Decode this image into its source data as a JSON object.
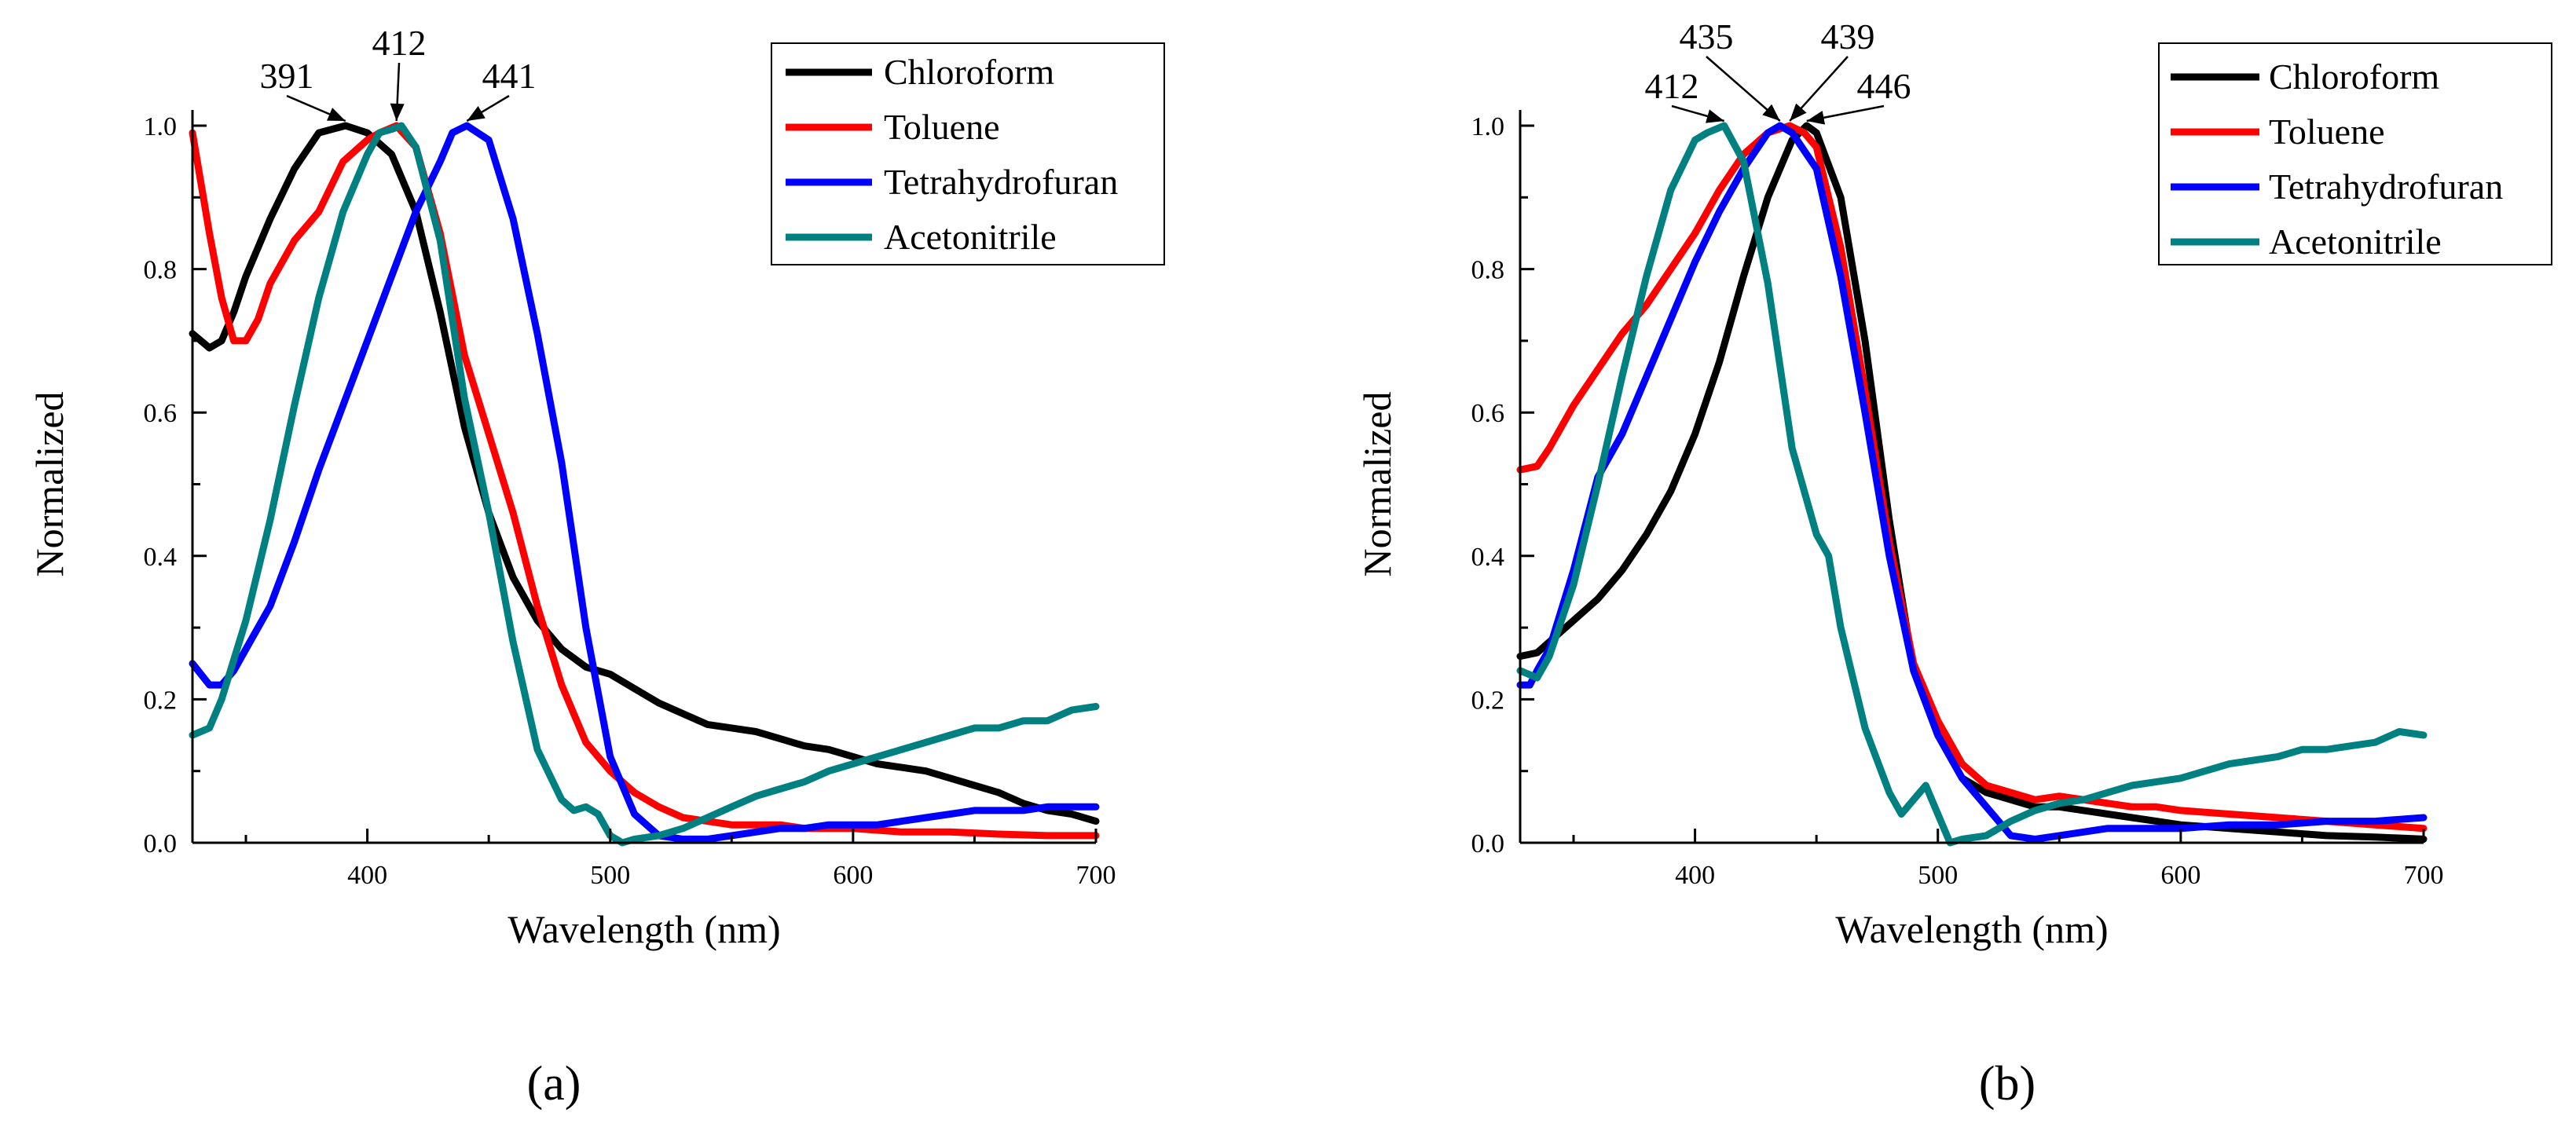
{
  "chart_data": [
    {
      "type": "line",
      "panel_label": "(a)",
      "xlabel": "Wavelength (nm)",
      "ylabel": "Normalized",
      "xlim": [
        328,
        700
      ],
      "ylim": [
        0,
        1.0
      ],
      "xticks": [
        400,
        500,
        600,
        700
      ],
      "yticks": [
        0.0,
        0.2,
        0.4,
        0.6,
        0.8,
        1.0
      ],
      "legend_position": "top-right",
      "series": [
        {
          "name": "Chloroform",
          "color": "#000000",
          "x": [
            328,
            335,
            340,
            345,
            350,
            360,
            370,
            380,
            391,
            400,
            410,
            420,
            430,
            440,
            450,
            460,
            470,
            480,
            490,
            500,
            510,
            520,
            530,
            540,
            550,
            560,
            570,
            580,
            590,
            600,
            610,
            620,
            630,
            640,
            650,
            660,
            670,
            680,
            690,
            700
          ],
          "y": [
            0.71,
            0.69,
            0.7,
            0.74,
            0.79,
            0.87,
            0.94,
            0.99,
            1.0,
            0.99,
            0.96,
            0.88,
            0.74,
            0.58,
            0.46,
            0.37,
            0.31,
            0.27,
            0.245,
            0.235,
            0.215,
            0.195,
            0.18,
            0.165,
            0.16,
            0.155,
            0.145,
            0.135,
            0.13,
            0.12,
            0.11,
            0.105,
            0.1,
            0.09,
            0.08,
            0.07,
            0.055,
            0.045,
            0.04,
            0.03
          ]
        },
        {
          "name": "Toluene",
          "color": "#ff0000",
          "x": [
            328,
            335,
            340,
            345,
            350,
            355,
            360,
            370,
            380,
            390,
            400,
            405,
            412,
            420,
            430,
            440,
            450,
            460,
            470,
            480,
            490,
            500,
            510,
            520,
            530,
            540,
            550,
            560,
            570,
            580,
            590,
            600,
            620,
            640,
            660,
            680,
            700
          ],
          "y": [
            0.99,
            0.85,
            0.76,
            0.7,
            0.7,
            0.73,
            0.78,
            0.84,
            0.88,
            0.95,
            0.98,
            0.99,
            1.0,
            0.97,
            0.85,
            0.68,
            0.57,
            0.46,
            0.33,
            0.22,
            0.14,
            0.1,
            0.07,
            0.05,
            0.035,
            0.03,
            0.025,
            0.025,
            0.025,
            0.02,
            0.02,
            0.02,
            0.015,
            0.015,
            0.012,
            0.01,
            0.01
          ]
        },
        {
          "name": "Tetrahydrofuran",
          "color": "#0000ff",
          "x": [
            328,
            335,
            340,
            345,
            350,
            360,
            370,
            380,
            390,
            400,
            410,
            420,
            430,
            435,
            441,
            450,
            460,
            470,
            480,
            490,
            500,
            510,
            520,
            530,
            540,
            550,
            560,
            570,
            580,
            590,
            600,
            610,
            620,
            630,
            640,
            650,
            660,
            670,
            680,
            690,
            700
          ],
          "y": [
            0.25,
            0.22,
            0.22,
            0.24,
            0.27,
            0.33,
            0.42,
            0.52,
            0.61,
            0.7,
            0.79,
            0.88,
            0.95,
            0.99,
            1.0,
            0.98,
            0.87,
            0.71,
            0.53,
            0.3,
            0.12,
            0.04,
            0.01,
            0.005,
            0.005,
            0.01,
            0.015,
            0.02,
            0.02,
            0.025,
            0.025,
            0.025,
            0.03,
            0.035,
            0.04,
            0.045,
            0.045,
            0.045,
            0.05,
            0.05,
            0.05
          ]
        },
        {
          "name": "Acetonitrile",
          "color": "#008080",
          "x": [
            328,
            335,
            340,
            350,
            360,
            370,
            380,
            390,
            400,
            405,
            410,
            414,
            420,
            430,
            440,
            450,
            460,
            470,
            480,
            485,
            490,
            495,
            500,
            505,
            510,
            520,
            530,
            540,
            550,
            560,
            570,
            580,
            590,
            600,
            610,
            620,
            630,
            640,
            650,
            660,
            670,
            680,
            690,
            700
          ],
          "y": [
            0.15,
            0.16,
            0.2,
            0.31,
            0.45,
            0.61,
            0.76,
            0.88,
            0.96,
            0.99,
            0.995,
            1.0,
            0.97,
            0.84,
            0.62,
            0.46,
            0.28,
            0.13,
            0.06,
            0.045,
            0.05,
            0.04,
            0.01,
            0.0,
            0.005,
            0.01,
            0.02,
            0.035,
            0.05,
            0.065,
            0.075,
            0.085,
            0.1,
            0.11,
            0.12,
            0.13,
            0.14,
            0.15,
            0.16,
            0.16,
            0.17,
            0.17,
            0.185,
            0.19
          ]
        }
      ],
      "annotations": [
        {
          "text": "391",
          "x": 391,
          "y": 1.0
        },
        {
          "text": "412",
          "x": 412,
          "y": 1.0
        },
        {
          "text": "441",
          "x": 441,
          "y": 1.0
        }
      ]
    },
    {
      "type": "line",
      "panel_label": "(b)",
      "xlabel": "Wavelength (nm)",
      "ylabel": "Normalized",
      "xlim": [
        328,
        700
      ],
      "ylim": [
        0,
        1.0
      ],
      "xticks": [
        400,
        500,
        600,
        700
      ],
      "yticks": [
        0.0,
        0.2,
        0.4,
        0.6,
        0.8,
        1.0
      ],
      "legend_position": "top-right",
      "series": [
        {
          "name": "Chloroform",
          "color": "#000000",
          "x": [
            328,
            335,
            340,
            350,
            360,
            370,
            380,
            390,
            400,
            410,
            420,
            430,
            440,
            446,
            450,
            460,
            470,
            480,
            490,
            500,
            510,
            520,
            530,
            540,
            550,
            560,
            570,
            580,
            590,
            600,
            620,
            640,
            660,
            680,
            700
          ],
          "y": [
            0.26,
            0.265,
            0.28,
            0.31,
            0.34,
            0.38,
            0.43,
            0.49,
            0.57,
            0.67,
            0.79,
            0.9,
            0.98,
            1.0,
            0.99,
            0.9,
            0.7,
            0.45,
            0.24,
            0.15,
            0.09,
            0.07,
            0.06,
            0.05,
            0.05,
            0.045,
            0.04,
            0.035,
            0.03,
            0.025,
            0.02,
            0.015,
            0.01,
            0.008,
            0.005
          ]
        },
        {
          "name": "Toluene",
          "color": "#ff0000",
          "x": [
            328,
            335,
            340,
            350,
            360,
            370,
            380,
            390,
            400,
            410,
            420,
            430,
            439,
            445,
            450,
            460,
            470,
            480,
            490,
            500,
            510,
            520,
            530,
            540,
            550,
            560,
            570,
            580,
            590,
            600,
            620,
            640,
            660,
            680,
            700
          ],
          "y": [
            0.52,
            0.525,
            0.55,
            0.61,
            0.66,
            0.71,
            0.75,
            0.8,
            0.85,
            0.91,
            0.96,
            0.99,
            1.0,
            0.99,
            0.97,
            0.83,
            0.63,
            0.42,
            0.25,
            0.17,
            0.11,
            0.08,
            0.07,
            0.06,
            0.065,
            0.06,
            0.055,
            0.05,
            0.05,
            0.045,
            0.04,
            0.035,
            0.03,
            0.025,
            0.02
          ]
        },
        {
          "name": "Tetrahydrofuran",
          "color": "#0000ff",
          "x": [
            328,
            332,
            335,
            340,
            350,
            360,
            370,
            380,
            390,
            400,
            410,
            420,
            430,
            435,
            440,
            450,
            460,
            470,
            480,
            490,
            500,
            510,
            520,
            530,
            540,
            550,
            560,
            570,
            580,
            600,
            620,
            640,
            660,
            680,
            700
          ],
          "y": [
            0.22,
            0.22,
            0.24,
            0.27,
            0.38,
            0.51,
            0.57,
            0.65,
            0.73,
            0.81,
            0.88,
            0.94,
            0.99,
            1.0,
            0.99,
            0.94,
            0.79,
            0.6,
            0.4,
            0.24,
            0.15,
            0.09,
            0.05,
            0.01,
            0.005,
            0.01,
            0.015,
            0.02,
            0.02,
            0.02,
            0.025,
            0.025,
            0.03,
            0.03,
            0.035
          ]
        },
        {
          "name": "Acetonitrile",
          "color": "#008080",
          "x": [
            328,
            335,
            340,
            350,
            360,
            370,
            380,
            390,
            400,
            405,
            412,
            420,
            430,
            440,
            450,
            455,
            460,
            470,
            480,
            485,
            490,
            495,
            500,
            505,
            510,
            520,
            530,
            540,
            550,
            560,
            570,
            580,
            590,
            600,
            610,
            620,
            630,
            640,
            650,
            660,
            670,
            680,
            690,
            700
          ],
          "y": [
            0.24,
            0.23,
            0.26,
            0.36,
            0.5,
            0.65,
            0.79,
            0.91,
            0.98,
            0.99,
            1.0,
            0.95,
            0.78,
            0.55,
            0.43,
            0.4,
            0.3,
            0.16,
            0.07,
            0.04,
            0.06,
            0.08,
            0.04,
            0.0,
            0.005,
            0.01,
            0.03,
            0.045,
            0.055,
            0.06,
            0.07,
            0.08,
            0.085,
            0.09,
            0.1,
            0.11,
            0.115,
            0.12,
            0.13,
            0.13,
            0.135,
            0.14,
            0.155,
            0.15
          ]
        }
      ],
      "annotations": [
        {
          "text": "412",
          "x": 412,
          "y": 1.0
        },
        {
          "text": "435",
          "x": 435,
          "y": 1.0
        },
        {
          "text": "439",
          "x": 439,
          "y": 1.0
        },
        {
          "text": "446",
          "x": 446,
          "y": 1.0
        }
      ]
    }
  ]
}
